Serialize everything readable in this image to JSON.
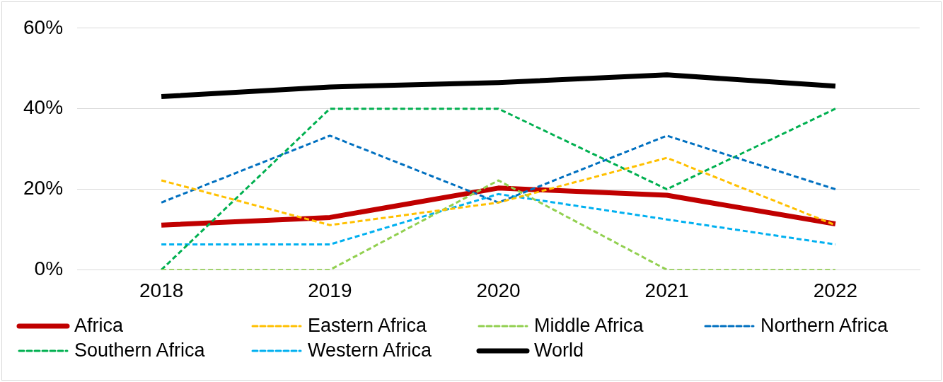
{
  "chart_data": {
    "type": "line",
    "categories": [
      "2018",
      "2019",
      "2020",
      "2021",
      "2022"
    ],
    "ylim": [
      0,
      60
    ],
    "yticks": [
      {
        "value": 0,
        "label": "0%"
      },
      {
        "value": 20,
        "label": "20%"
      },
      {
        "value": 40,
        "label": "40%"
      },
      {
        "value": 60,
        "label": "60%"
      }
    ],
    "grid": "y",
    "legend": "bottom",
    "marker": "none",
    "series": [
      {
        "name": "Africa",
        "color": "#c00000",
        "line_style": "solid",
        "values": [
          11.1,
          13.0,
          20.3,
          18.5,
          11.4
        ]
      },
      {
        "name": "Eastern Africa",
        "color": "#ffc000",
        "line_style": "dashed",
        "values": [
          22.2,
          11.1,
          16.7,
          27.8,
          11.1
        ]
      },
      {
        "name": "Middle Africa",
        "color": "#92d050",
        "line_style": "dashed",
        "values": [
          0,
          0,
          22.2,
          0,
          0
        ]
      },
      {
        "name": "Northern Africa",
        "color": "#0070c0",
        "line_style": "dashed",
        "values": [
          16.7,
          33.3,
          16.7,
          33.3,
          20
        ]
      },
      {
        "name": "Southern Africa",
        "color": "#00b050",
        "line_style": "dashed",
        "values": [
          0,
          40,
          40,
          20,
          40
        ]
      },
      {
        "name": "Western Africa",
        "color": "#00b0f0",
        "line_style": "dashed",
        "values": [
          6.3,
          6.3,
          18.8,
          12.5,
          6.3
        ]
      },
      {
        "name": "World",
        "color": "#000000",
        "line_style": "solid",
        "values": [
          43.0,
          45.4,
          46.5,
          48.4,
          45.6
        ]
      }
    ]
  }
}
